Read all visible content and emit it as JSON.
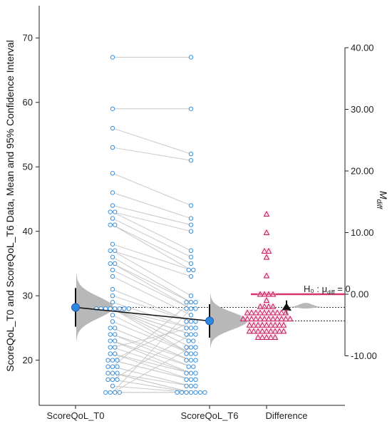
{
  "chart_data": {
    "type": "scatter",
    "subtype": "paired estimation plot (Gardner-Altman)",
    "left_axis": {
      "label": "ScoreQoL_T0 and ScoreQoL_T6 Data, Mean and 95% Confidence Interval",
      "ticks": [
        20,
        30,
        40,
        50,
        60,
        70
      ],
      "range": [
        13,
        75
      ]
    },
    "right_axis": {
      "label": "M",
      "label_sub": "diff",
      "ticks": [
        "40.00",
        "30.00",
        "20.00",
        "10.00",
        "0.00",
        "-10.00"
      ],
      "tick_values": [
        40,
        30,
        20,
        10,
        0,
        -10
      ],
      "range": [
        -10,
        40
      ]
    },
    "categories": [
      "ScoreQoL_T0",
      "ScoreQoL_T6",
      "Difference"
    ],
    "null_label": "H₀ : μ",
    "null_label_sub": "diff",
    "null_label_tail": " = 0",
    "pairs": [
      [
        67,
        67
      ],
      [
        59,
        59
      ],
      [
        56,
        52
      ],
      [
        53,
        51
      ],
      [
        49,
        44
      ],
      [
        46,
        42
      ],
      [
        44,
        41
      ],
      [
        43,
        40
      ],
      [
        43,
        37
      ],
      [
        42,
        36
      ],
      [
        41,
        35
      ],
      [
        41,
        34
      ],
      [
        38,
        34
      ],
      [
        37,
        33
      ],
      [
        37,
        30
      ],
      [
        36,
        29
      ],
      [
        35,
        29
      ],
      [
        35,
        28
      ],
      [
        34,
        28
      ],
      [
        33,
        27
      ],
      [
        31,
        26
      ],
      [
        30,
        26
      ],
      [
        29,
        25
      ],
      [
        28,
        25
      ],
      [
        28,
        24
      ],
      [
        28,
        24
      ],
      [
        28,
        23
      ],
      [
        28,
        23
      ],
      [
        28,
        22
      ],
      [
        28,
        22
      ],
      [
        28,
        21
      ],
      [
        27,
        21
      ],
      [
        26,
        21
      ],
      [
        25,
        20
      ],
      [
        25,
        20
      ],
      [
        24,
        20
      ],
      [
        24,
        19
      ],
      [
        23,
        19
      ],
      [
        23,
        18
      ],
      [
        22,
        18
      ],
      [
        21,
        18
      ],
      [
        21,
        17
      ],
      [
        20,
        17
      ],
      [
        20,
        17
      ],
      [
        19,
        16
      ],
      [
        19,
        16
      ],
      [
        18,
        16
      ],
      [
        18,
        15
      ],
      [
        18,
        15
      ],
      [
        17,
        15
      ],
      [
        17,
        15
      ],
      [
        16,
        15
      ],
      [
        15,
        15
      ],
      [
        15,
        15
      ],
      [
        15,
        28
      ],
      [
        19,
        29
      ],
      [
        20,
        26
      ],
      [
        17,
        24
      ],
      [
        15,
        22
      ],
      [
        22,
        25
      ]
    ],
    "means": {
      "T0": 28.2,
      "T6": 26.1
    },
    "ci": {
      "T0": [
        25.2,
        31.2
      ],
      "T6": [
        23.5,
        28.7
      ]
    },
    "mean_difference": -2.1,
    "difference_ci": [
      -3.2,
      -1.0
    ],
    "colors": {
      "points": "#3a8fd9",
      "mean": "#2e86de",
      "difference_points": "#c2185b",
      "difference_line": "#d6336c",
      "distribution": "#b8b8b8",
      "pair_lines": "#c9c9c9"
    }
  }
}
